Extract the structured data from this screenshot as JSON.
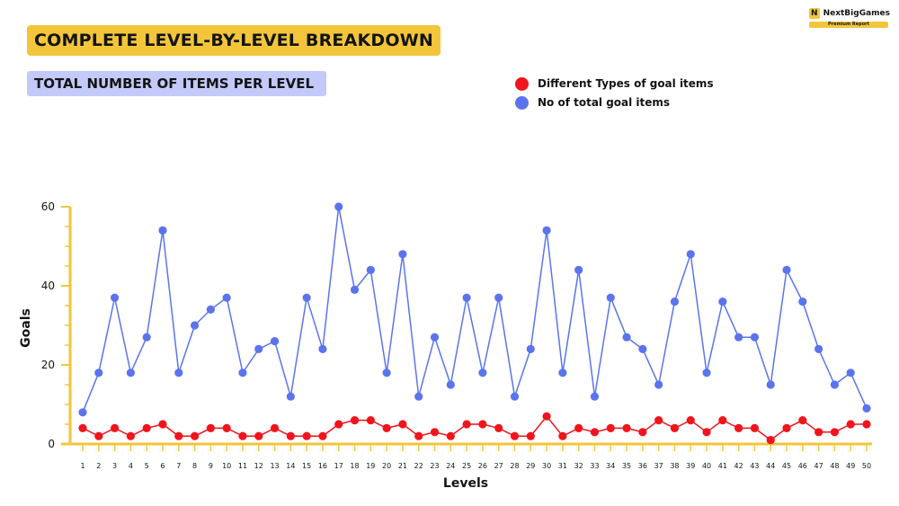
{
  "header": {
    "title": "COMPLETE LEVEL-BY-LEVEL BREAKDOWN",
    "subtitle": "TOTAL NUMBER OF ITEMS PER LEVEL"
  },
  "brand": {
    "name": "NextBigGames",
    "tag": "Premium Report",
    "logo_letter": "N",
    "color": "#f3c53b"
  },
  "colors": {
    "red_series": "#f1141c",
    "blue_series": "#5b74ee",
    "axis": "#f3c53b"
  },
  "chart_data": {
    "type": "line",
    "xlabel": "Levels",
    "ylabel": "Goals",
    "ylim": [
      0,
      60
    ],
    "yticks": [
      0,
      20,
      40,
      60
    ],
    "grid": false,
    "legend_position": "top-right",
    "x": [
      1,
      2,
      3,
      4,
      5,
      6,
      7,
      8,
      9,
      10,
      11,
      12,
      13,
      14,
      15,
      16,
      17,
      18,
      19,
      20,
      21,
      22,
      23,
      24,
      25,
      26,
      27,
      28,
      29,
      30,
      31,
      32,
      33,
      34,
      35,
      36,
      37,
      38,
      39,
      40,
      41,
      42,
      43,
      44,
      45,
      46,
      47,
      48,
      49,
      50
    ],
    "series": [
      {
        "name": "Different Types of goal items",
        "color": "#f1141c",
        "values": [
          4,
          2,
          4,
          2,
          4,
          5,
          2,
          2,
          4,
          4,
          2,
          2,
          4,
          2,
          2,
          2,
          5,
          6,
          6,
          4,
          5,
          2,
          3,
          2,
          5,
          5,
          4,
          2,
          2,
          7,
          2,
          4,
          3,
          4,
          4,
          3,
          6,
          4,
          6,
          3,
          6,
          4,
          4,
          1,
          4,
          6,
          3,
          3,
          5,
          5
        ]
      },
      {
        "name": "No of total goal items",
        "color": "#5b74ee",
        "values": [
          8,
          18,
          37,
          18,
          27,
          54,
          18,
          30,
          34,
          37,
          18,
          24,
          26,
          12,
          37,
          24,
          60,
          39,
          44,
          18,
          48,
          12,
          27,
          15,
          37,
          18,
          37,
          12,
          24,
          54,
          18,
          44,
          12,
          37,
          27,
          24,
          15,
          36,
          48,
          18,
          36,
          27,
          27,
          15,
          44,
          36,
          24,
          15,
          18,
          9
        ]
      }
    ]
  }
}
